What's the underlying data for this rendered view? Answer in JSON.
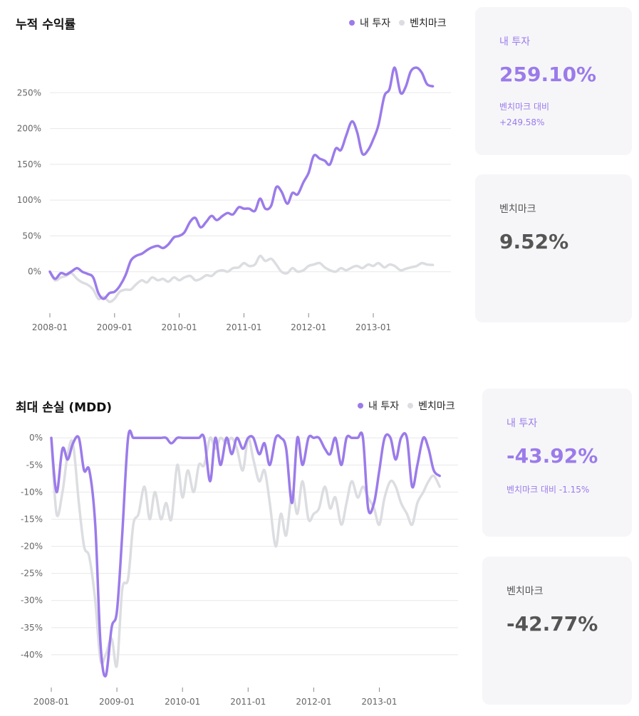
{
  "colors": {
    "mine": "#9b7bea",
    "bench": "#dcdde1",
    "grid": "#e8e8ea"
  },
  "returns": {
    "title": "누적 수익률",
    "legend": {
      "mine": "내 투자",
      "bench": "벤치마크"
    },
    "card_mine": {
      "label": "내 투자",
      "value": "259.10%",
      "sub1": "벤치마크 대비",
      "sub2": "+249.58%"
    },
    "card_bench": {
      "label": "벤치마크",
      "value": "9.52%"
    }
  },
  "mdd": {
    "title": "최대 손실 (MDD)",
    "legend": {
      "mine": "내 투자",
      "bench": "벤치마크"
    },
    "card_mine": {
      "label": "내 투자",
      "value": "-43.92%",
      "sub": "벤치마크 대비 -1.15%"
    },
    "card_bench": {
      "label": "벤치마크",
      "value": "-42.77%"
    }
  },
  "chart_data": [
    {
      "type": "line",
      "title": "누적 수익률",
      "xlabel": "",
      "ylabel": "",
      "x_ticks": [
        "2008-01",
        "2009-01",
        "2010-01",
        "2011-01",
        "2012-01",
        "2013-01"
      ],
      "y_ticks": [
        "0%",
        "50%",
        "100%",
        "150%",
        "200%",
        "250%"
      ],
      "y_tick_values": [
        0,
        50,
        100,
        150,
        200,
        250
      ],
      "xlim": [
        2008.0,
        2014.2
      ],
      "ylim": [
        -50,
        300
      ],
      "grid": true,
      "legend_position": "top-right",
      "series": [
        {
          "name": "내 투자",
          "color": "#9b7bea",
          "x": [
            2008.0,
            2008.08,
            2008.17,
            2008.25,
            2008.33,
            2008.42,
            2008.5,
            2008.58,
            2008.67,
            2008.75,
            2008.83,
            2008.92,
            2009.0,
            2009.08,
            2009.17,
            2009.25,
            2009.33,
            2009.42,
            2009.5,
            2009.58,
            2009.67,
            2009.75,
            2009.83,
            2009.92,
            2010.0,
            2010.08,
            2010.17,
            2010.25,
            2010.33,
            2010.42,
            2010.5,
            2010.58,
            2010.67,
            2010.75,
            2010.83,
            2010.92,
            2011.0,
            2011.08,
            2011.17,
            2011.25,
            2011.33,
            2011.42,
            2011.5,
            2011.58,
            2011.67,
            2011.75,
            2011.83,
            2011.92,
            2012.0,
            2012.08,
            2012.17,
            2012.25,
            2012.33,
            2012.42,
            2012.5,
            2012.58,
            2012.67,
            2012.75,
            2012.83,
            2012.92,
            2013.0,
            2013.08,
            2013.17,
            2013.25,
            2013.33,
            2013.42,
            2013.5,
            2013.58,
            2013.67,
            2013.75,
            2013.83,
            2013.92
          ],
          "values": [
            0,
            -10,
            -2,
            -4,
            0,
            5,
            0,
            -3,
            -8,
            -30,
            -38,
            -30,
            -28,
            -20,
            -5,
            15,
            22,
            25,
            30,
            34,
            36,
            33,
            38,
            48,
            50,
            55,
            70,
            75,
            62,
            70,
            78,
            72,
            78,
            82,
            80,
            90,
            88,
            88,
            85,
            102,
            88,
            92,
            118,
            112,
            95,
            110,
            108,
            125,
            138,
            162,
            158,
            155,
            150,
            172,
            170,
            190,
            210,
            195,
            165,
            170,
            185,
            205,
            245,
            255,
            285,
            250,
            258,
            280,
            285,
            278,
            262,
            259
          ]
        },
        {
          "name": "벤치마크",
          "color": "#dcdde1",
          "x": [
            2008.0,
            2008.08,
            2008.17,
            2008.25,
            2008.33,
            2008.42,
            2008.5,
            2008.58,
            2008.67,
            2008.75,
            2008.83,
            2008.92,
            2009.0,
            2009.08,
            2009.17,
            2009.25,
            2009.33,
            2009.42,
            2009.5,
            2009.58,
            2009.67,
            2009.75,
            2009.83,
            2009.92,
            2010.0,
            2010.08,
            2010.17,
            2010.25,
            2010.33,
            2010.42,
            2010.5,
            2010.58,
            2010.67,
            2010.75,
            2010.83,
            2010.92,
            2011.0,
            2011.08,
            2011.17,
            2011.25,
            2011.33,
            2011.42,
            2011.5,
            2011.58,
            2011.67,
            2011.75,
            2011.83,
            2011.92,
            2012.0,
            2012.08,
            2012.17,
            2012.25,
            2012.33,
            2012.42,
            2012.5,
            2012.58,
            2012.67,
            2012.75,
            2012.83,
            2012.92,
            2013.0,
            2013.08,
            2013.17,
            2013.25,
            2013.33,
            2013.42,
            2013.5,
            2013.58,
            2013.67,
            2013.75,
            2013.83,
            2013.92
          ],
          "values": [
            0,
            -12,
            -8,
            -6,
            -2,
            -10,
            -15,
            -18,
            -25,
            -38,
            -35,
            -42,
            -38,
            -28,
            -25,
            -25,
            -18,
            -12,
            -15,
            -8,
            -12,
            -10,
            -14,
            -8,
            -12,
            -8,
            -6,
            -12,
            -10,
            -5,
            -6,
            0,
            2,
            0,
            5,
            6,
            12,
            8,
            10,
            22,
            15,
            18,
            10,
            0,
            -2,
            5,
            0,
            2,
            8,
            10,
            12,
            6,
            2,
            0,
            5,
            2,
            6,
            8,
            5,
            10,
            8,
            12,
            6,
            10,
            8,
            2,
            4,
            6,
            8,
            12,
            10,
            9.5
          ]
        }
      ]
    },
    {
      "type": "line",
      "title": "최대 손실 (MDD)",
      "xlabel": "",
      "ylabel": "",
      "x_ticks": [
        "2008-01",
        "2009-01",
        "2010-01",
        "2011-01",
        "2012-01",
        "2013-01"
      ],
      "y_ticks": [
        "0%",
        "-5%",
        "-10%",
        "-15%",
        "-20%",
        "-25%",
        "-30%",
        "-35%",
        "-40%"
      ],
      "y_tick_values": [
        0,
        -5,
        -10,
        -15,
        -20,
        -25,
        -30,
        -35,
        -40
      ],
      "xlim": [
        2008.0,
        2014.2
      ],
      "ylim": [
        -45,
        2
      ],
      "grid": true,
      "legend_position": "top-right",
      "series": [
        {
          "name": "내 투자",
          "color": "#9b7bea",
          "x": [
            2008.0,
            2008.08,
            2008.17,
            2008.25,
            2008.33,
            2008.42,
            2008.5,
            2008.58,
            2008.67,
            2008.75,
            2008.83,
            2008.92,
            2009.0,
            2009.08,
            2009.17,
            2009.25,
            2009.33,
            2009.42,
            2009.5,
            2009.58,
            2009.67,
            2009.75,
            2009.83,
            2009.92,
            2010.0,
            2010.08,
            2010.17,
            2010.25,
            2010.33,
            2010.42,
            2010.5,
            2010.58,
            2010.67,
            2010.75,
            2010.83,
            2010.92,
            2011.0,
            2011.08,
            2011.17,
            2011.25,
            2011.33,
            2011.42,
            2011.5,
            2011.58,
            2011.67,
            2011.75,
            2011.83,
            2011.92,
            2012.0,
            2012.08,
            2012.17,
            2012.25,
            2012.33,
            2012.42,
            2012.5,
            2012.58,
            2012.67,
            2012.75,
            2012.83,
            2012.92,
            2013.0,
            2013.08,
            2013.17,
            2013.25,
            2013.33,
            2013.42,
            2013.5,
            2013.58,
            2013.67,
            2013.75,
            2013.83,
            2013.92
          ],
          "values": [
            0,
            -10,
            -2,
            -4,
            -1,
            0,
            -6,
            -6,
            -16,
            -38,
            -43.9,
            -35,
            -32,
            -18,
            0,
            0,
            0,
            0,
            0,
            0,
            0,
            0,
            -1,
            0,
            0,
            0,
            0,
            0,
            0,
            -8,
            0,
            -5,
            0,
            -3,
            0,
            -2,
            0,
            0,
            -3,
            -1,
            -5,
            0,
            0,
            -2,
            -12,
            0,
            -5,
            0,
            0,
            0,
            -2,
            -3,
            0,
            -5,
            0,
            0,
            0,
            0,
            -13,
            -12,
            -6,
            0,
            0,
            -4,
            0,
            0,
            -9,
            -5,
            0,
            -2,
            -6,
            -7
          ]
        },
        {
          "name": "벤치마크",
          "color": "#dcdde1",
          "x": [
            2008.0,
            2008.08,
            2008.17,
            2008.25,
            2008.33,
            2008.42,
            2008.5,
            2008.58,
            2008.67,
            2008.75,
            2008.83,
            2008.92,
            2009.0,
            2009.08,
            2009.17,
            2009.25,
            2009.33,
            2009.42,
            2009.5,
            2009.58,
            2009.67,
            2009.75,
            2009.83,
            2009.92,
            2010.0,
            2010.08,
            2010.17,
            2010.25,
            2010.33,
            2010.42,
            2010.5,
            2010.58,
            2010.67,
            2010.75,
            2010.83,
            2010.92,
            2011.0,
            2011.08,
            2011.17,
            2011.25,
            2011.33,
            2011.42,
            2011.5,
            2011.58,
            2011.67,
            2011.75,
            2011.83,
            2011.92,
            2012.0,
            2012.08,
            2012.17,
            2012.25,
            2012.33,
            2012.42,
            2012.5,
            2012.58,
            2012.67,
            2012.75,
            2012.83,
            2012.92,
            2013.0,
            2013.08,
            2013.17,
            2013.25,
            2013.33,
            2013.42,
            2013.5,
            2013.58,
            2013.67,
            2013.75,
            2013.83,
            2013.92
          ],
          "values": [
            0,
            -14,
            -10,
            -3,
            -1,
            -12,
            -20,
            -22,
            -30,
            -41,
            -40,
            -37,
            -42,
            -28,
            -26,
            -16,
            -14,
            -9,
            -15,
            -10,
            -15,
            -12,
            -15,
            -5,
            -11,
            -6,
            -10,
            -5,
            -5,
            0,
            -2,
            0,
            -1,
            0,
            -2,
            -6,
            0,
            -4,
            -8,
            -6,
            -12,
            -20,
            -14,
            -18,
            -10,
            -14,
            -8,
            -15,
            -14,
            -13,
            -9,
            -13,
            -11,
            -16,
            -12,
            -8,
            -11,
            -9,
            -11,
            -13,
            -16,
            -11,
            -8,
            -9,
            -12,
            -14,
            -16,
            -12,
            -10,
            -8,
            -7,
            -9
          ]
        }
      ]
    }
  ]
}
